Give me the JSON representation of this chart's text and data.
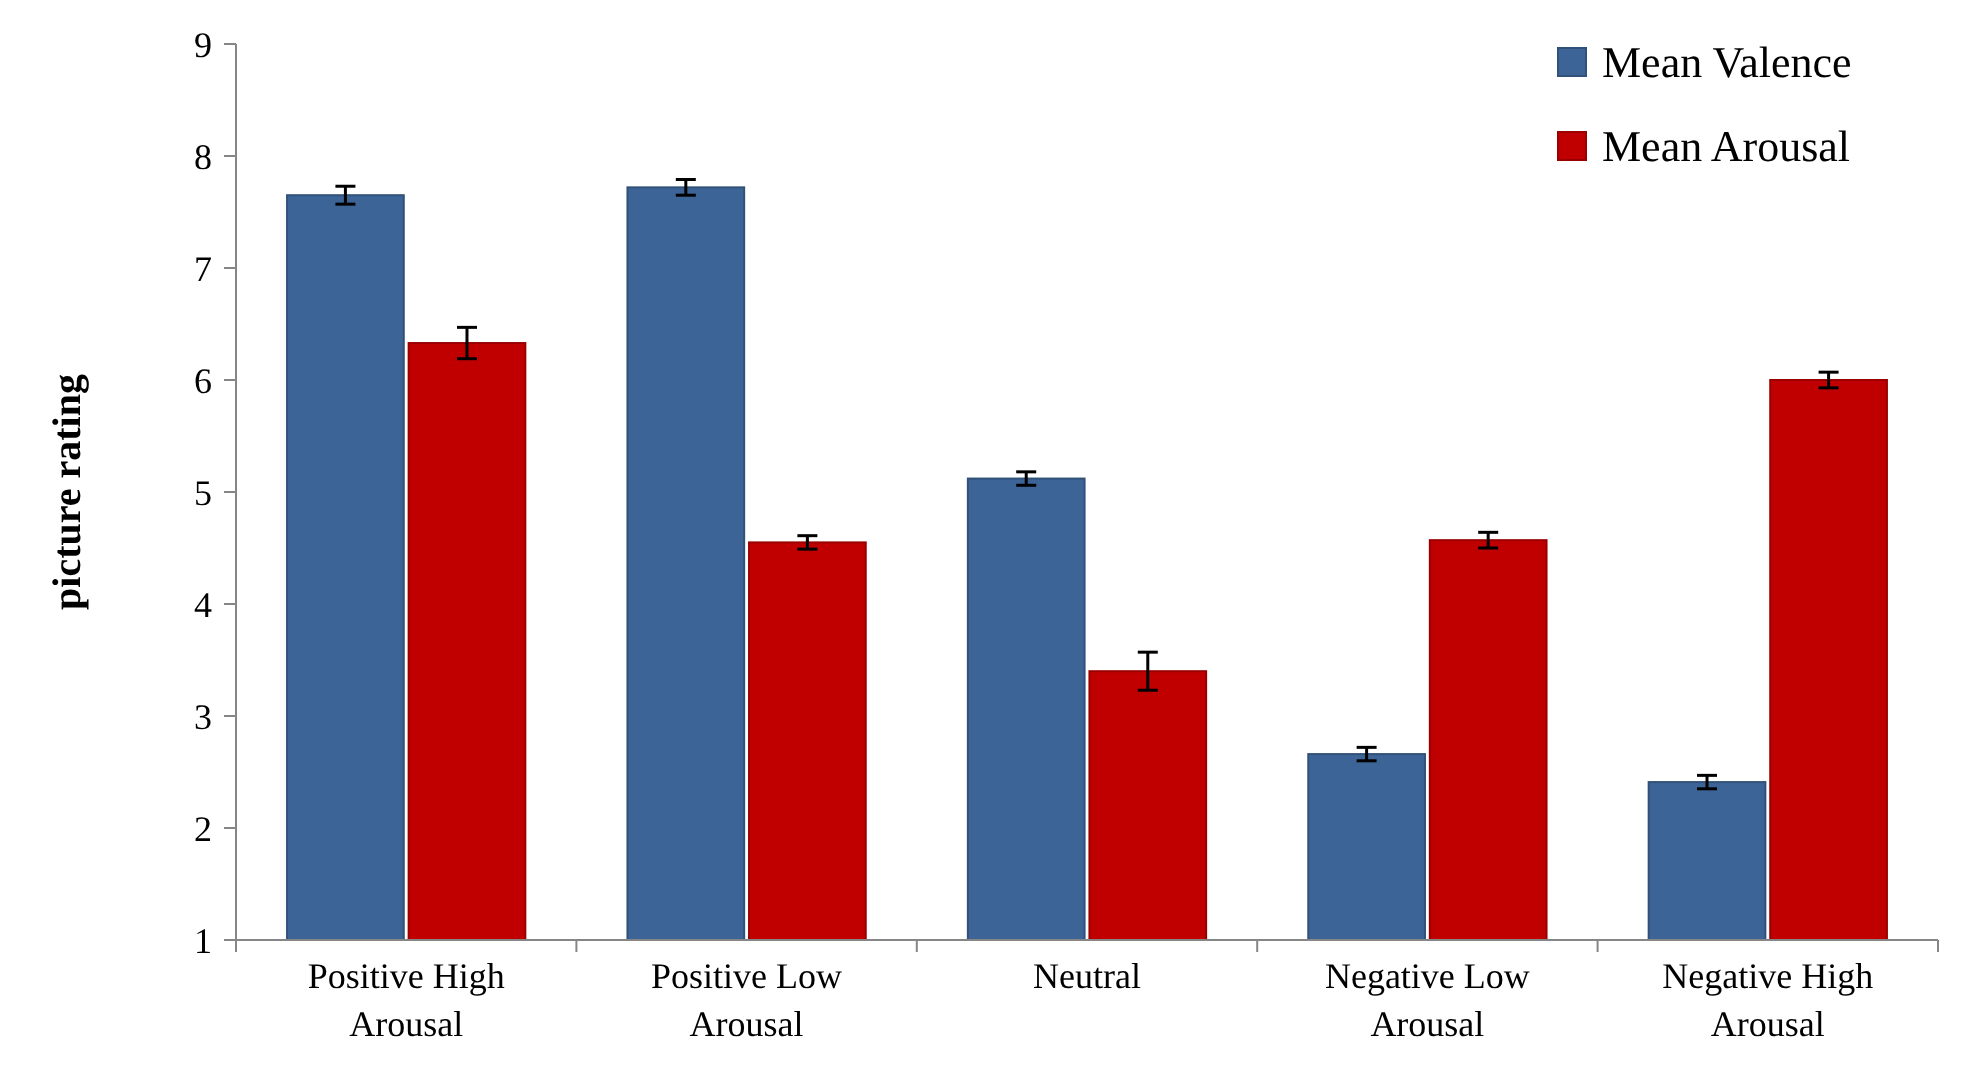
{
  "chart_data": {
    "type": "bar",
    "ylabel": "picture rating",
    "categories": [
      "Positive High Arousal",
      "Positive Low Arousal",
      "Neutral",
      "Negative Low Arousal",
      "Negative High Arousal"
    ],
    "series": [
      {
        "name": "Mean Valence",
        "color": "#3d6496",
        "values": [
          7.65,
          7.72,
          5.12,
          2.66,
          2.41
        ],
        "errors": [
          0.08,
          0.07,
          0.06,
          0.06,
          0.06
        ]
      },
      {
        "name": "Mean Arousal",
        "color": "#c00000",
        "values": [
          6.33,
          4.55,
          3.4,
          4.57,
          6.0
        ],
        "errors": [
          0.14,
          0.06,
          0.17,
          0.07,
          0.07
        ]
      }
    ],
    "ylim": [
      1,
      9
    ],
    "yticks": [
      1,
      2,
      3,
      4,
      5,
      6,
      7,
      8,
      9
    ],
    "grid": false,
    "legend": "top right"
  }
}
